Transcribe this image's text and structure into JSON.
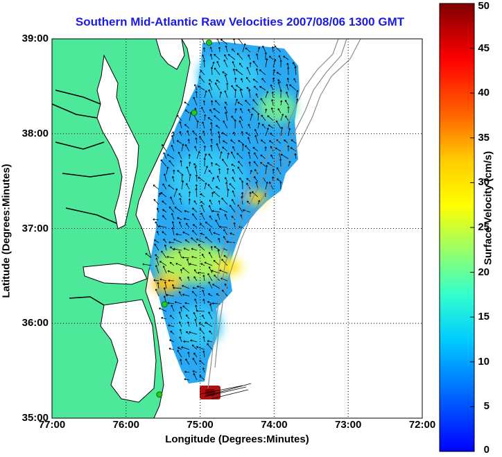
{
  "title": "Southern Mid-Atlantic Raw Velocities 2007/08/06 1300 GMT",
  "xlabel": "Longitude (Degrees:Minutes)",
  "ylabel": "Latitude (Degrees:Minutes)",
  "colorbar": {
    "label": "Surface Velocity (cm/s)",
    "range": [
      0,
      50
    ],
    "ticks": [
      "0",
      "5",
      "10",
      "15",
      "20",
      "25",
      "30",
      "35",
      "40",
      "45",
      "50"
    ],
    "colormap": "jet"
  },
  "x_ticks": [
    "77:00",
    "76:00",
    "75:00",
    "74:00",
    "73:00",
    "72:00"
  ],
  "y_ticks": [
    "39:00",
    "38:00",
    "37:00",
    "36:00",
    "35:00"
  ],
  "colors": {
    "land": "#4de89a",
    "coastline": "#000000",
    "depth_contours": "#8c8c8c",
    "stations": "#22c922",
    "title": "#1a1ae6"
  },
  "map_extent": {
    "lon": [
      -77,
      -72
    ],
    "lat": [
      35,
      39
    ]
  },
  "stations": [
    {
      "lon": -74.88,
      "lat": 38.96
    },
    {
      "lon": -75.08,
      "lat": 38.22
    },
    {
      "lon": -75.48,
      "lat": 36.2
    },
    {
      "lon": -75.55,
      "lat": 35.25
    }
  ]
}
